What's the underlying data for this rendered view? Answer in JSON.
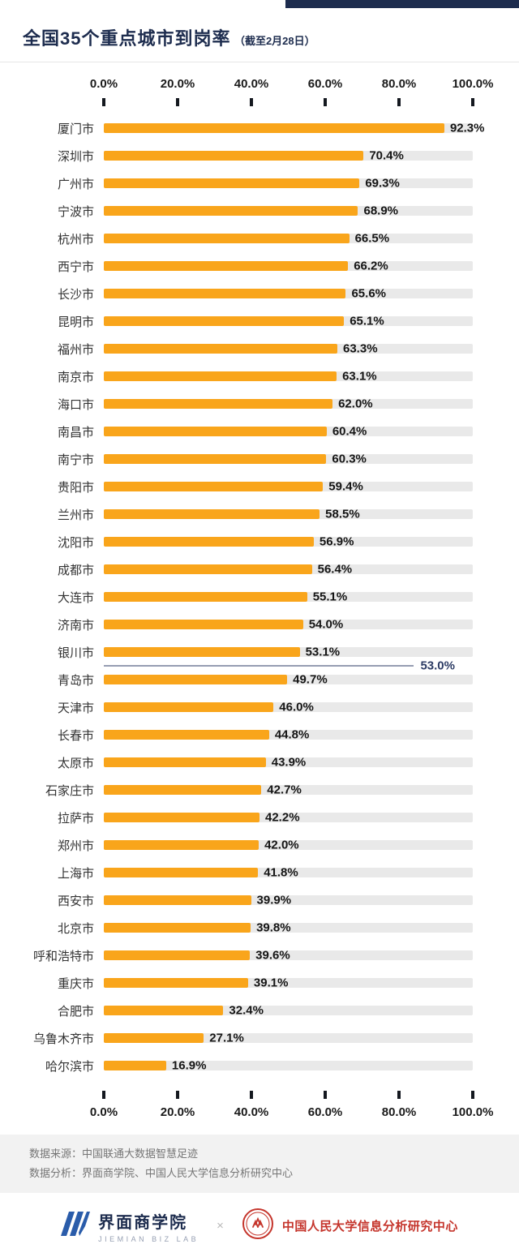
{
  "header": {
    "title": "全国35个重点城市到岗率",
    "subtitle": "（截至2月28日）"
  },
  "chart_data": {
    "type": "bar",
    "orientation": "horizontal",
    "title": "全国35个重点城市到岗率（截至2月28日）",
    "xlabel": "",
    "ylabel": "",
    "xlim": [
      0,
      100
    ],
    "x_ticks": [
      "0.0%",
      "20.0%",
      "40.0%",
      "60.0%",
      "80.0%",
      "100.0%"
    ],
    "grid": false,
    "legend": "none",
    "categories": [
      "厦门市",
      "深圳市",
      "广州市",
      "宁波市",
      "杭州市",
      "西宁市",
      "长沙市",
      "昆明市",
      "福州市",
      "南京市",
      "海口市",
      "南昌市",
      "南宁市",
      "贵阳市",
      "兰州市",
      "沈阳市",
      "成都市",
      "大连市",
      "济南市",
      "银川市",
      "青岛市",
      "天津市",
      "长春市",
      "太原市",
      "石家庄市",
      "拉萨市",
      "郑州市",
      "上海市",
      "西安市",
      "北京市",
      "呼和浩特市",
      "重庆市",
      "合肥市",
      "乌鲁木齐市",
      "哈尔滨市"
    ],
    "values": [
      92.3,
      70.4,
      69.3,
      68.9,
      66.5,
      66.2,
      65.6,
      65.1,
      63.3,
      63.1,
      62.0,
      60.4,
      60.3,
      59.4,
      58.5,
      56.9,
      56.4,
      55.1,
      54.0,
      53.1,
      49.7,
      46.0,
      44.8,
      43.9,
      42.7,
      42.2,
      42.0,
      41.8,
      39.9,
      39.8,
      39.6,
      39.1,
      32.4,
      27.1,
      16.9
    ],
    "reference_line": {
      "value": 53.0,
      "label": "53.0%",
      "after_category": "银川市"
    },
    "bar_color": "#F9A51B",
    "track_color": "#E9E9E9",
    "reference_color": "#2C3B64"
  },
  "footer": {
    "source": "数据来源：中国联通大数据智慧足迹",
    "analysis": "数据分析：界面商学院、中国人民大学信息分析研究中心"
  },
  "branding": {
    "left_name": "界面商学院",
    "left_sub": "JIEMIAN BIZ LAB",
    "separator": "×",
    "right_name": "中国人民大学信息分析研究中心"
  }
}
